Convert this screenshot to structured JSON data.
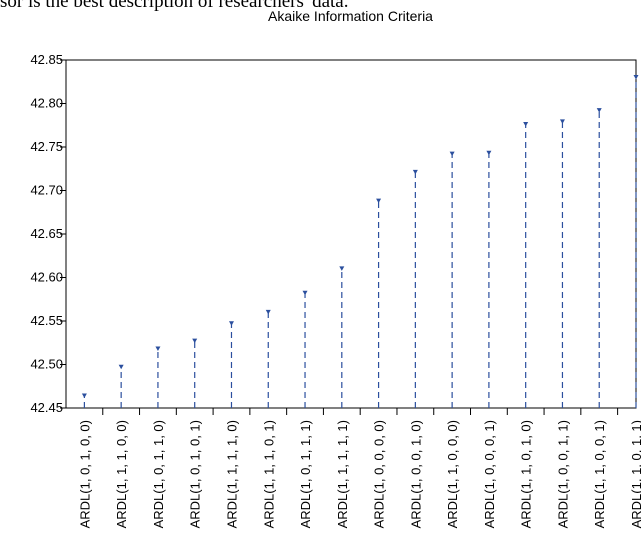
{
  "caption": "sor is the best description of researchers' data.",
  "chart_data": {
    "type": "line",
    "title": "Akaike Information Criteria",
    "xlabel": "",
    "ylabel": "",
    "ylim": [
      42.45,
      42.85
    ],
    "yticks": [
      "42.45",
      "42.50",
      "42.55",
      "42.60",
      "42.65",
      "42.70",
      "42.75",
      "42.80",
      "42.85"
    ],
    "grid": false,
    "style": "dropline",
    "line_color": "#2b4f9e",
    "categories": [
      "ARDL(1, 0, 1, 0, 0)",
      "ARDL(1, 1, 1, 0, 0)",
      "ARDL(1, 0, 1, 1, 0)",
      "ARDL(1, 0, 1, 0, 1)",
      "ARDL(1, 1, 1, 1, 0)",
      "ARDL(1, 1, 1, 0, 1)",
      "ARDL(1, 0, 1, 1, 1)",
      "ARDL(1, 1, 1, 1, 1)",
      "ARDL(1, 0, 0, 0, 0)",
      "ARDL(1, 0, 0, 1, 0)",
      "ARDL(1, 1, 0, 0, 0)",
      "ARDL(1, 0, 0, 0, 1)",
      "ARDL(1, 1, 0, 1, 0)",
      "ARDL(1, 0, 0, 1, 1)",
      "ARDL(1, 1, 0, 0, 1)",
      "ARDL(1, 1, 0, 1, 1)"
    ],
    "values": [
      42.465,
      42.498,
      42.519,
      42.528,
      42.548,
      42.561,
      42.583,
      42.611,
      42.689,
      42.722,
      42.743,
      42.744,
      42.777,
      42.78,
      42.793,
      42.831
    ]
  }
}
